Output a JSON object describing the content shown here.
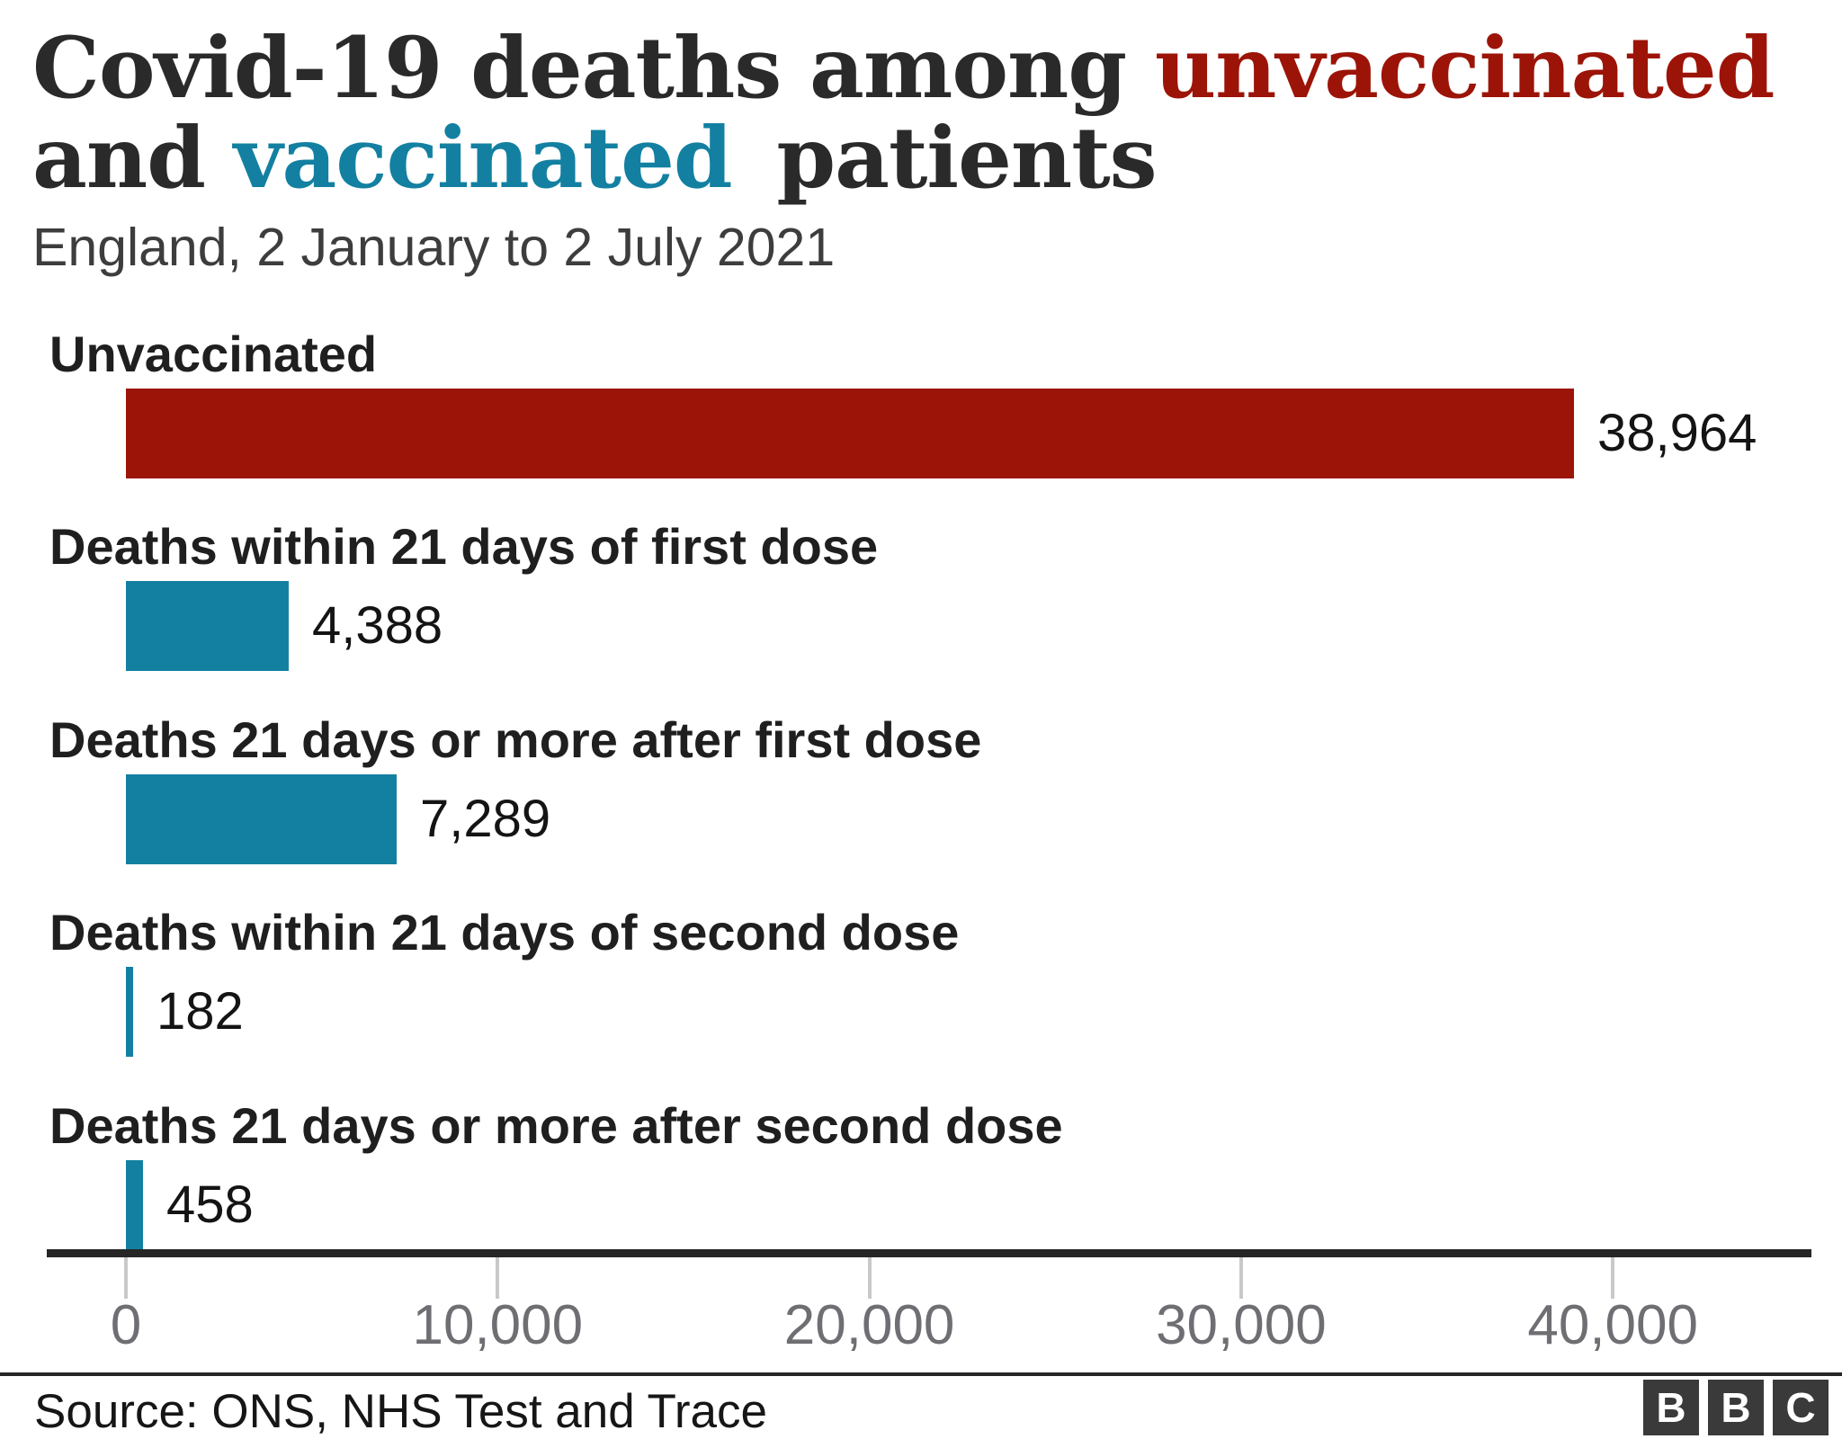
{
  "colors": {
    "background": "#ffffff",
    "title_text": "#2a2a2a",
    "red": "#9c1408",
    "teal": "#1380a1",
    "subtitle_text": "#3d3d3d",
    "label_text": "#1f1f1f",
    "value_text": "#141414",
    "axis_line": "#262626",
    "tick_line": "#c9c9c9",
    "tick_label": "#6e6e73",
    "divider": "#262626",
    "source_text": "#161616",
    "logo_block": "#3a3a3a",
    "logo_letter": "#ffffff"
  },
  "title": {
    "line1_prefix": "Covid-19 deaths among ",
    "line1_highlight": "unvaccinated",
    "line2_prefix": "and ",
    "line2_highlight": "vaccinated",
    "line2_suffix": " patients"
  },
  "subtitle": "England, 2 January to 2 July 2021",
  "chart_data": {
    "type": "bar",
    "orientation": "horizontal",
    "title": "Covid-19 deaths among unvaccinated and vaccinated patients",
    "subtitle": "England, 2 January to 2 July 2021",
    "categories": [
      "Unvaccinated",
      "Deaths within 21 days of first dose",
      "Deaths 21 days or more after first dose",
      "Deaths within 21 days of second dose",
      "Deaths 21 days or more after second dose"
    ],
    "values": [
      38964,
      4388,
      7289,
      182,
      458
    ],
    "value_labels": [
      "38,964",
      "4,388",
      "7,289",
      "182",
      "458"
    ],
    "bar_colors": [
      "#9c1408",
      "#1380a1",
      "#1380a1",
      "#1380a1",
      "#1380a1"
    ],
    "x_ticks": [
      0,
      10000,
      20000,
      30000,
      40000
    ],
    "x_tick_labels": [
      "0",
      "10,000",
      "20,000",
      "30,000",
      "40,000"
    ],
    "xlim": [
      0,
      45400
    ],
    "grid": false,
    "legend": false
  },
  "footer": {
    "source": "Source: ONS, NHS Test and Trace",
    "logo_letters": [
      "B",
      "B",
      "C"
    ]
  }
}
